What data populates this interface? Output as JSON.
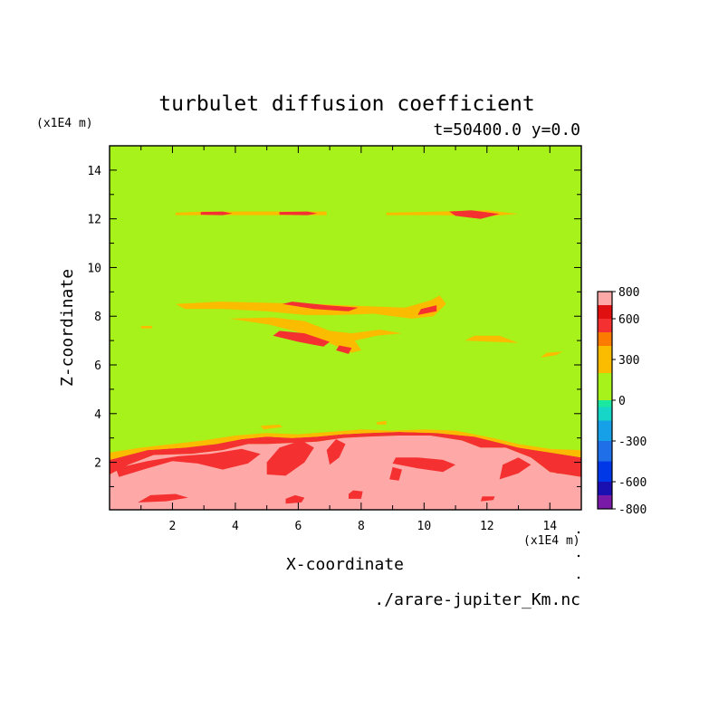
{
  "chart_data": {
    "type": "heatmap",
    "title": "turbulet diffusion coefficient",
    "subtitle": "t=50400.0 y=0.0",
    "xlabel": "X-coordinate",
    "ylabel": "Z-coordinate",
    "x_unit": "(x1E4 m)",
    "y_unit": "(x1E4 m)",
    "source": "./arare-jupiter_Km.nc",
    "xlim": [
      0,
      15
    ],
    "ylim": [
      0.05,
      15
    ],
    "x_ticks": [
      2,
      4,
      6,
      8,
      10,
      12,
      14
    ],
    "y_ticks": [
      2,
      4,
      6,
      8,
      10,
      12,
      14
    ],
    "colorbar": {
      "range": [
        -800,
        800
      ],
      "tick_labels": [
        "800",
        "600",
        "300",
        "0",
        "-300",
        "-600",
        "-800"
      ],
      "tick_values": [
        800,
        600,
        300,
        0,
        -300,
        -600,
        -800
      ],
      "levels": [
        {
          "from": -800,
          "to": -700,
          "color": "#7a1aa8"
        },
        {
          "from": -700,
          "to": -600,
          "color": "#1a0fb0"
        },
        {
          "from": -600,
          "to": -450,
          "color": "#0038e8"
        },
        {
          "from": -450,
          "to": -300,
          "color": "#1f6fe8"
        },
        {
          "from": -300,
          "to": -150,
          "color": "#16a0e8"
        },
        {
          "from": -150,
          "to": -50,
          "color": "#16d6c8"
        },
        {
          "from": -50,
          "to": 0,
          "color": "#1ae8a0"
        },
        {
          "from": 0,
          "to": 200,
          "color": "#a6f21a"
        },
        {
          "from": 200,
          "to": 400,
          "color": "#fbbc00"
        },
        {
          "from": 400,
          "to": 500,
          "color": "#fb7a00"
        },
        {
          "from": 500,
          "to": 600,
          "color": "#f53030"
        },
        {
          "from": 600,
          "to": 700,
          "color": "#e01010"
        },
        {
          "from": 700,
          "to": 800,
          "color": "#ffa8a8"
        }
      ]
    },
    "background_value": 100,
    "regions": [
      {
        "level": 800,
        "points": [
          [
            0,
            0.05
          ],
          [
            15,
            0.05
          ],
          [
            15,
            1.4
          ],
          [
            14,
            1.6
          ],
          [
            13.4,
            2.2
          ],
          [
            12.6,
            2.6
          ],
          [
            11.8,
            2.6
          ],
          [
            11.2,
            2.9
          ],
          [
            10.2,
            3.1
          ],
          [
            9.2,
            3.1
          ],
          [
            8.2,
            3.05
          ],
          [
            7.4,
            3.0
          ],
          [
            6.6,
            2.85
          ],
          [
            5.8,
            2.8
          ],
          [
            5.0,
            2.75
          ],
          [
            4.4,
            2.75
          ],
          [
            3.6,
            2.5
          ],
          [
            2.6,
            2.35
          ],
          [
            1.4,
            2.3
          ],
          [
            0.6,
            1.9
          ],
          [
            0,
            1.5
          ]
        ]
      },
      {
        "level": 600,
        "points": [
          [
            0,
            1.5
          ],
          [
            0.6,
            1.9
          ],
          [
            1.4,
            2.3
          ],
          [
            2.6,
            2.35
          ],
          [
            3.6,
            2.5
          ],
          [
            4.4,
            2.75
          ],
          [
            5.0,
            2.75
          ],
          [
            5.8,
            2.8
          ],
          [
            6.6,
            2.85
          ],
          [
            7.4,
            3.0
          ],
          [
            8.2,
            3.05
          ],
          [
            9.2,
            3.1
          ],
          [
            10.2,
            3.1
          ],
          [
            11.2,
            2.9
          ],
          [
            11.8,
            2.6
          ],
          [
            12.6,
            2.6
          ],
          [
            13.4,
            2.2
          ],
          [
            14,
            1.6
          ],
          [
            15,
            1.4
          ],
          [
            15,
            2.2
          ],
          [
            14,
            2.4
          ],
          [
            13,
            2.6
          ],
          [
            12.4,
            2.8
          ],
          [
            11.6,
            3.05
          ],
          [
            10.4,
            3.2
          ],
          [
            9.2,
            3.25
          ],
          [
            8.2,
            3.2
          ],
          [
            7.4,
            3.15
          ],
          [
            6.6,
            3.05
          ],
          [
            5.8,
            3.0
          ],
          [
            5.0,
            3.05
          ],
          [
            4.2,
            2.95
          ],
          [
            3.4,
            2.75
          ],
          [
            2.4,
            2.6
          ],
          [
            1.2,
            2.5
          ],
          [
            0,
            2.1
          ]
        ]
      },
      {
        "level": 300,
        "points": [
          [
            0,
            2.1
          ],
          [
            1.2,
            2.5
          ],
          [
            2.4,
            2.6
          ],
          [
            3.4,
            2.75
          ],
          [
            4.2,
            2.95
          ],
          [
            5.0,
            3.05
          ],
          [
            5.8,
            3.0
          ],
          [
            6.6,
            3.05
          ],
          [
            7.4,
            3.15
          ],
          [
            8.2,
            3.2
          ],
          [
            9.2,
            3.25
          ],
          [
            10.4,
            3.2
          ],
          [
            11.6,
            3.05
          ],
          [
            12.4,
            2.8
          ],
          [
            13,
            2.6
          ],
          [
            14,
            2.4
          ],
          [
            15,
            2.2
          ],
          [
            15,
            2.5
          ],
          [
            14,
            2.55
          ],
          [
            13,
            2.75
          ],
          [
            12.2,
            3.0
          ],
          [
            11,
            3.3
          ],
          [
            10,
            3.35
          ],
          [
            9,
            3.3
          ],
          [
            8,
            3.35
          ],
          [
            7,
            3.25
          ],
          [
            6,
            3.15
          ],
          [
            5,
            3.2
          ],
          [
            4,
            3.1
          ],
          [
            3,
            2.9
          ],
          [
            2,
            2.75
          ],
          [
            1,
            2.6
          ],
          [
            0,
            2.4
          ]
        ]
      },
      {
        "level": 600,
        "points": [
          [
            0.3,
            1.4
          ],
          [
            1.2,
            1.75
          ],
          [
            2.0,
            2.05
          ],
          [
            2.8,
            1.95
          ],
          [
            3.6,
            1.7
          ],
          [
            4.4,
            1.95
          ],
          [
            4.8,
            2.35
          ],
          [
            4.2,
            2.55
          ],
          [
            3.2,
            2.35
          ],
          [
            2.2,
            2.25
          ],
          [
            1.2,
            2.05
          ],
          [
            0.2,
            1.75
          ]
        ]
      },
      {
        "level": 600,
        "points": [
          [
            5.0,
            1.5
          ],
          [
            5.6,
            1.45
          ],
          [
            6.2,
            2.0
          ],
          [
            6.5,
            2.6
          ],
          [
            6.1,
            2.9
          ],
          [
            5.4,
            2.6
          ],
          [
            5.0,
            2.0
          ]
        ]
      },
      {
        "level": 600,
        "points": [
          [
            7.0,
            1.9
          ],
          [
            7.3,
            2.2
          ],
          [
            7.5,
            2.75
          ],
          [
            7.2,
            2.95
          ],
          [
            6.9,
            2.5
          ]
        ]
      },
      {
        "level": 600,
        "points": [
          [
            9.0,
            1.95
          ],
          [
            9.8,
            1.75
          ],
          [
            10.6,
            1.6
          ],
          [
            11.0,
            1.9
          ],
          [
            10.6,
            2.1
          ],
          [
            9.8,
            2.2
          ],
          [
            9.1,
            2.2
          ]
        ]
      },
      {
        "level": 600,
        "points": [
          [
            12.4,
            1.3
          ],
          [
            13.0,
            1.55
          ],
          [
            13.4,
            1.9
          ],
          [
            13.0,
            2.2
          ],
          [
            12.5,
            1.9
          ]
        ]
      },
      {
        "level": 600,
        "points": [
          [
            14.2,
            1.55
          ],
          [
            14.8,
            1.5
          ],
          [
            15,
            1.7
          ],
          [
            14.6,
            1.85
          ],
          [
            14.2,
            1.8
          ]
        ]
      },
      {
        "level": 600,
        "points": [
          [
            0.9,
            0.35
          ],
          [
            1.8,
            0.4
          ],
          [
            2.5,
            0.55
          ],
          [
            2.1,
            0.7
          ],
          [
            1.3,
            0.65
          ]
        ]
      },
      {
        "level": 600,
        "points": [
          [
            5.6,
            0.3
          ],
          [
            6.1,
            0.35
          ],
          [
            6.2,
            0.55
          ],
          [
            5.9,
            0.65
          ],
          [
            5.6,
            0.5
          ]
        ]
      },
      {
        "level": 600,
        "points": [
          [
            7.6,
            0.5
          ],
          [
            8.0,
            0.5
          ],
          [
            8.05,
            0.8
          ],
          [
            7.75,
            0.85
          ],
          [
            7.6,
            0.7
          ]
        ]
      },
      {
        "level": 600,
        "points": [
          [
            11.8,
            0.4
          ],
          [
            12.2,
            0.45
          ],
          [
            12.25,
            0.6
          ],
          [
            11.85,
            0.6
          ]
        ]
      },
      {
        "level": 600,
        "points": [
          [
            8.9,
            1.3
          ],
          [
            9.2,
            1.25
          ],
          [
            9.3,
            1.7
          ],
          [
            9.0,
            1.8
          ]
        ]
      },
      {
        "level": 300,
        "points": [
          [
            2.1,
            8.5
          ],
          [
            3.5,
            8.6
          ],
          [
            5.0,
            8.55
          ],
          [
            6.6,
            8.5
          ],
          [
            7.4,
            8.45
          ],
          [
            8.4,
            8.4
          ],
          [
            9.4,
            8.35
          ],
          [
            10.2,
            8.65
          ],
          [
            10.5,
            8.85
          ],
          [
            10.7,
            8.5
          ],
          [
            10.3,
            8.0
          ],
          [
            9.6,
            7.9
          ],
          [
            8.4,
            8.1
          ],
          [
            7.2,
            8.05
          ],
          [
            6.2,
            8.05
          ],
          [
            5.0,
            8.2
          ],
          [
            3.6,
            8.3
          ],
          [
            2.4,
            8.3
          ]
        ]
      },
      {
        "level": 600,
        "points": [
          [
            5.5,
            8.5
          ],
          [
            6.5,
            8.3
          ],
          [
            7.6,
            8.2
          ],
          [
            7.9,
            8.35
          ],
          [
            6.9,
            8.45
          ],
          [
            5.8,
            8.6
          ]
        ]
      },
      {
        "level": 600,
        "points": [
          [
            9.8,
            8.05
          ],
          [
            10.4,
            8.2
          ],
          [
            10.4,
            8.45
          ],
          [
            9.9,
            8.3
          ]
        ]
      },
      {
        "level": 300,
        "points": [
          [
            3.8,
            7.9
          ],
          [
            5.1,
            7.65
          ],
          [
            6.0,
            7.35
          ],
          [
            6.9,
            6.95
          ],
          [
            7.7,
            6.5
          ],
          [
            8.0,
            6.6
          ],
          [
            7.8,
            7.0
          ],
          [
            8.5,
            7.2
          ],
          [
            9.3,
            7.3
          ],
          [
            8.6,
            7.45
          ],
          [
            7.7,
            7.3
          ],
          [
            7.0,
            7.4
          ],
          [
            6.2,
            7.8
          ],
          [
            5.2,
            7.95
          ]
        ]
      },
      {
        "level": 600,
        "points": [
          [
            5.2,
            7.2
          ],
          [
            6.0,
            6.95
          ],
          [
            6.8,
            6.75
          ],
          [
            7.0,
            6.95
          ],
          [
            6.2,
            7.3
          ],
          [
            5.4,
            7.4
          ]
        ]
      },
      {
        "level": 600,
        "points": [
          [
            7.2,
            6.6
          ],
          [
            7.6,
            6.45
          ],
          [
            7.7,
            6.7
          ],
          [
            7.3,
            6.8
          ]
        ]
      },
      {
        "level": 300,
        "points": [
          [
            11.3,
            7.0
          ],
          [
            12.2,
            6.95
          ],
          [
            13.0,
            6.9
          ],
          [
            12.4,
            7.2
          ],
          [
            11.6,
            7.2
          ]
        ]
      },
      {
        "level": 300,
        "points": [
          [
            13.7,
            6.3
          ],
          [
            14.2,
            6.4
          ],
          [
            14.4,
            6.55
          ],
          [
            13.9,
            6.5
          ]
        ]
      },
      {
        "level": 300,
        "points": [
          [
            1.0,
            7.5
          ],
          [
            1.35,
            7.5
          ],
          [
            1.35,
            7.6
          ],
          [
            1.0,
            7.6
          ]
        ]
      },
      {
        "level": 300,
        "points": [
          [
            2.1,
            12.25
          ],
          [
            3.0,
            12.3
          ],
          [
            4.8,
            12.3
          ],
          [
            6.9,
            12.3
          ],
          [
            6.9,
            12.15
          ],
          [
            4.8,
            12.15
          ],
          [
            3.0,
            12.15
          ],
          [
            2.1,
            12.15
          ]
        ]
      },
      {
        "level": 600,
        "points": [
          [
            2.9,
            12.28
          ],
          [
            3.6,
            12.3
          ],
          [
            3.9,
            12.22
          ],
          [
            3.6,
            12.15
          ],
          [
            2.9,
            12.17
          ]
        ]
      },
      {
        "level": 600,
        "points": [
          [
            5.4,
            12.28
          ],
          [
            6.3,
            12.3
          ],
          [
            6.6,
            12.22
          ],
          [
            6.3,
            12.15
          ],
          [
            5.4,
            12.17
          ]
        ]
      },
      {
        "level": 300,
        "points": [
          [
            8.8,
            12.25
          ],
          [
            10.5,
            12.3
          ],
          [
            12.0,
            12.35
          ],
          [
            13.0,
            12.2
          ],
          [
            12.0,
            12.1
          ],
          [
            10.5,
            12.15
          ],
          [
            8.8,
            12.15
          ]
        ]
      },
      {
        "level": 600,
        "points": [
          [
            10.8,
            12.3
          ],
          [
            11.5,
            12.35
          ],
          [
            12.4,
            12.2
          ],
          [
            11.8,
            12.0
          ],
          [
            11.0,
            12.12
          ]
        ]
      },
      {
        "level": 300,
        "points": [
          [
            4.8,
            3.5
          ],
          [
            5.4,
            3.55
          ],
          [
            5.5,
            3.45
          ],
          [
            4.9,
            3.35
          ]
        ]
      },
      {
        "level": 300,
        "points": [
          [
            8.5,
            3.65
          ],
          [
            8.8,
            3.7
          ],
          [
            8.8,
            3.55
          ],
          [
            8.5,
            3.55
          ]
        ]
      }
    ]
  }
}
